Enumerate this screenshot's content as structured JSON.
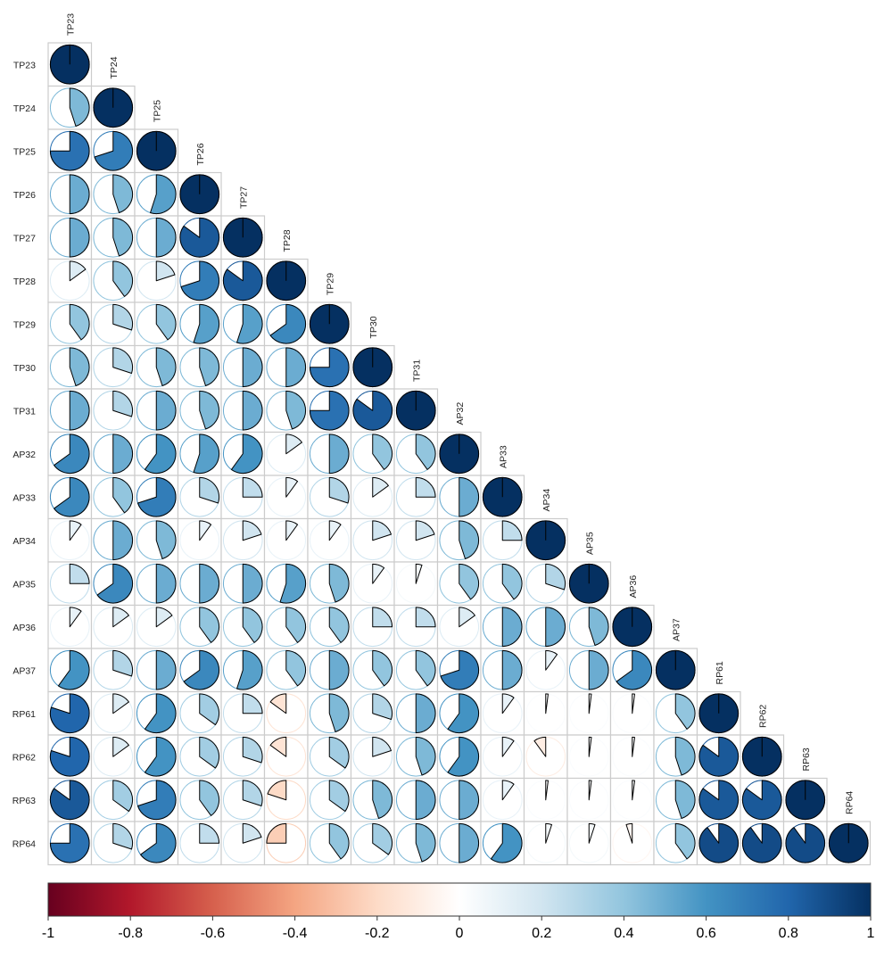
{
  "chart_data": {
    "type": "heatmap",
    "glyph": "pie",
    "layout": "lower-triangle",
    "labels": [
      "TP23",
      "TP24",
      "TP25",
      "TP26",
      "TP27",
      "TP28",
      "TP29",
      "TP30",
      "TP31",
      "AP32",
      "AP33",
      "AP34",
      "AP35",
      "AP36",
      "AP37",
      "RP61",
      "RP62",
      "RP63",
      "RP64"
    ],
    "matrix": [
      [
        1.0
      ],
      [
        0.45,
        1.0
      ],
      [
        0.75,
        0.7,
        1.0
      ],
      [
        0.5,
        0.45,
        0.55,
        1.0
      ],
      [
        0.5,
        0.45,
        0.5,
        0.85,
        1.0
      ],
      [
        0.15,
        0.4,
        0.2,
        0.7,
        0.85,
        1.0
      ],
      [
        0.4,
        0.3,
        0.4,
        0.55,
        0.55,
        0.65,
        1.0
      ],
      [
        0.45,
        0.3,
        0.45,
        0.45,
        0.5,
        0.5,
        0.75,
        1.0
      ],
      [
        0.5,
        0.3,
        0.5,
        0.45,
        0.5,
        0.45,
        0.75,
        0.85,
        1.0
      ],
      [
        0.65,
        0.5,
        0.6,
        0.55,
        0.6,
        0.15,
        0.5,
        0.4,
        0.4,
        1.0
      ],
      [
        0.65,
        0.4,
        0.7,
        0.3,
        0.25,
        0.1,
        0.3,
        0.15,
        0.25,
        0.5,
        1.0
      ],
      [
        0.1,
        0.5,
        0.45,
        0.1,
        0.2,
        0.1,
        0.1,
        0.2,
        0.2,
        0.45,
        0.25,
        1.0
      ],
      [
        0.25,
        0.65,
        0.5,
        0.5,
        0.5,
        0.55,
        0.45,
        0.1,
        0.05,
        0.4,
        0.4,
        0.3,
        1.0
      ],
      [
        0.1,
        0.15,
        0.15,
        0.4,
        0.4,
        0.4,
        0.4,
        0.25,
        0.25,
        0.15,
        0.5,
        0.5,
        0.45,
        1.0
      ],
      [
        0.6,
        0.3,
        0.5,
        0.65,
        0.55,
        0.4,
        0.5,
        0.4,
        0.4,
        0.7,
        0.5,
        0.1,
        0.5,
        0.65,
        1.0
      ],
      [
        0.8,
        0.15,
        0.6,
        0.35,
        0.25,
        -0.15,
        0.45,
        0.3,
        0.5,
        0.6,
        0.1,
        0.02,
        0.02,
        0.02,
        0.4,
        1.0
      ],
      [
        0.8,
        0.15,
        0.6,
        0.35,
        0.3,
        -0.15,
        0.35,
        0.2,
        0.45,
        0.6,
        0.1,
        -0.1,
        0.02,
        0.02,
        0.45,
        0.85,
        1.0
      ],
      [
        0.85,
        0.35,
        0.7,
        0.4,
        0.3,
        -0.2,
        0.35,
        0.45,
        0.5,
        0.5,
        0.1,
        0.02,
        0.02,
        0.02,
        0.45,
        0.85,
        0.85,
        1.0
      ],
      [
        0.75,
        0.3,
        0.65,
        0.25,
        0.2,
        -0.25,
        0.4,
        0.35,
        0.45,
        0.5,
        0.6,
        0.05,
        0.05,
        -0.05,
        0.4,
        0.9,
        0.9,
        0.9,
        1.0
      ]
    ],
    "colorbar": {
      "min": -1,
      "max": 1,
      "ticks": [
        "-1",
        "-0.8",
        "-0.6",
        "-0.4",
        "-0.2",
        "0",
        "0.2",
        "0.4",
        "0.6",
        "0.8",
        "1"
      ],
      "colors": [
        "#67001F",
        "#B2182B",
        "#D6604D",
        "#F4A582",
        "#FDDBC7",
        "#FFFFFF",
        "#D1E5F0",
        "#92C5DE",
        "#4393C3",
        "#2166AC",
        "#053061"
      ]
    },
    "grid": true,
    "title": ""
  }
}
